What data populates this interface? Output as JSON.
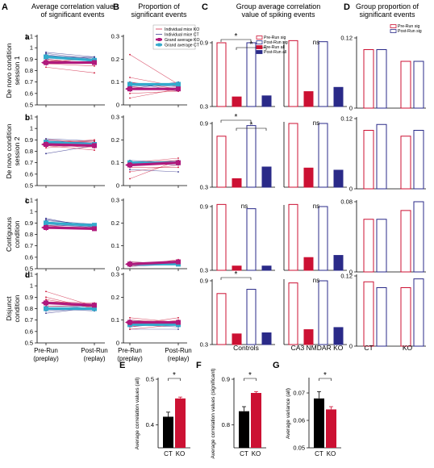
{
  "panel_letters": {
    "A": "A",
    "B": "B",
    "C": "C",
    "D": "D",
    "E": "E",
    "F": "F",
    "G": "G"
  },
  "headers": {
    "A": "Average correlation value of significant events",
    "B": "Proportion of significant events",
    "C": "Group average correlation value of spiking events",
    "D": "Group proportion of significant events"
  },
  "row_letters": [
    "a",
    "b",
    "c",
    "d"
  ],
  "row_labels": [
    [
      "De novo condition",
      "session 1"
    ],
    [
      "De novo condition",
      "session 2"
    ],
    [
      "Contiguous",
      "condition"
    ],
    [
      "Disjunct",
      "condition"
    ]
  ],
  "x_labels_AB": [
    [
      "Pre-Run",
      "(preplay)"
    ],
    [
      "Post-Run",
      "(replay)"
    ]
  ],
  "group_labels": {
    "controls": "Controls",
    "ko": "CA3 NMDAR KO",
    "ct": "CT",
    "ko_short": "KO"
  },
  "annotations": {
    "star": "*",
    "ns": "ns"
  },
  "legend_B": [
    "Individual mice KO",
    "Individual mice CT",
    "Grand average KO",
    "Grand average CT"
  ],
  "legend_C": [
    "Pre-Run sig",
    "Post-Run sig",
    "Pre-Run all",
    "Post-Run all"
  ],
  "legend_D": [
    "Pre-Run sig",
    "Post-Run sig"
  ],
  "bottom_ylabels": {
    "E": "Average correlation values (all)",
    "F": "Average correlation values (significant)",
    "G": "Average variance (all)"
  },
  "colors": {
    "ko": "#cc1133",
    "ct": "#2a2a88",
    "ko_grand": "#b0197c",
    "ct_grand": "#33aacc",
    "bar_black": "#000000"
  },
  "chart_data": [
    {
      "panel": "A",
      "type": "line",
      "yticks": [
        0.5,
        0.6,
        0.7,
        0.8,
        0.9,
        1.0,
        1.1
      ],
      "ylim": [
        0.5,
        1.1
      ],
      "x": [
        "Pre-Run (preplay)",
        "Post-Run (replay)"
      ],
      "rows": [
        {
          "grand_ko": [
            0.87,
            0.87
          ],
          "grand_ct": [
            0.92,
            0.89
          ],
          "ko": [
            [
              0.86,
              0.84
            ],
            [
              0.87,
              0.88
            ],
            [
              0.89,
              0.86
            ],
            [
              0.88,
              0.9
            ],
            [
              0.83,
              0.78
            ],
            [
              0.9,
              0.86
            ]
          ],
          "ct": [
            [
              0.95,
              0.9
            ],
            [
              0.93,
              0.91
            ],
            [
              0.94,
              0.88
            ],
            [
              0.91,
              0.92
            ],
            [
              0.9,
              0.86
            ],
            [
              0.92,
              0.88
            ],
            [
              0.96,
              0.92
            ]
          ]
        },
        {
          "grand_ko": [
            0.86,
            0.85
          ],
          "grand_ct": [
            0.88,
            0.86
          ],
          "ko": [
            [
              0.86,
              0.83
            ],
            [
              0.88,
              0.89
            ],
            [
              0.83,
              0.86
            ],
            [
              0.9,
              0.88
            ],
            [
              0.85,
              0.81
            ],
            [
              0.87,
              0.9
            ]
          ],
          "ct": [
            [
              0.89,
              0.87
            ],
            [
              0.78,
              0.85
            ],
            [
              0.91,
              0.89
            ],
            [
              0.86,
              0.84
            ],
            [
              0.88,
              0.88
            ],
            [
              0.9,
              0.86
            ]
          ]
        },
        {
          "grand_ko": [
            0.86,
            0.85
          ],
          "grand_ct": [
            0.9,
            0.88
          ],
          "ko": [
            [
              0.86,
              0.85
            ],
            [
              0.87,
              0.86
            ],
            [
              0.88,
              0.84
            ],
            [
              0.85,
              0.86
            ]
          ],
          "ct": [
            [
              0.93,
              0.87
            ],
            [
              0.89,
              0.86
            ],
            [
              0.92,
              0.89
            ],
            [
              0.88,
              0.87
            ],
            [
              0.91,
              0.88
            ],
            [
              0.9,
              0.89
            ],
            [
              0.94,
              0.86
            ]
          ]
        },
        {
          "grand_ko": [
            0.85,
            0.83
          ],
          "grand_ct": [
            0.8,
            0.8
          ],
          "ko": [
            [
              0.95,
              0.82
            ],
            [
              0.9,
              0.8
            ],
            [
              0.85,
              0.84
            ],
            [
              0.82,
              0.83
            ],
            [
              0.88,
              0.81
            ],
            [
              0.86,
              0.85
            ]
          ],
          "ct": [
            [
              0.78,
              0.8
            ],
            [
              0.8,
              0.78
            ],
            [
              0.82,
              0.82
            ],
            [
              0.76,
              0.81
            ],
            [
              0.8,
              0.79
            ],
            [
              0.79,
              0.83
            ]
          ]
        }
      ]
    },
    {
      "panel": "B",
      "type": "line",
      "yticks": [
        0,
        0.1,
        0.2,
        0.3
      ],
      "ylim": [
        0,
        0.3
      ],
      "x": [
        "Pre-Run (preplay)",
        "Post-Run (replay)"
      ],
      "rows": [
        {
          "grand_ko": [
            0.07,
            0.07
          ],
          "grand_ct": [
            0.09,
            0.09
          ],
          "ko": [
            [
              0.22,
              0.09
            ],
            [
              0.12,
              0.08
            ],
            [
              0.1,
              0.07
            ],
            [
              0.08,
              0.06
            ],
            [
              0.05,
              0.06
            ],
            [
              0.03,
              0.07
            ]
          ],
          "ct": [
            [
              0.09,
              0.08
            ],
            [
              0.08,
              0.09
            ],
            [
              0.1,
              0.06
            ],
            [
              0.07,
              0.1
            ],
            [
              0.09,
              0.09
            ]
          ]
        },
        {
          "grand_ko": [
            0.09,
            0.1
          ],
          "grand_ct": [
            0.1,
            0.1
          ],
          "ko": [
            [
              0.1,
              0.11
            ],
            [
              0.03,
              0.11
            ],
            [
              0.06,
              0.09
            ],
            [
              0.08,
              0.08
            ],
            [
              0.1,
              0.12
            ]
          ],
          "ct": [
            [
              0.1,
              0.1
            ],
            [
              0.09,
              0.11
            ],
            [
              0.07,
              0.06
            ],
            [
              0.11,
              0.1
            ],
            [
              0.1,
              0.09
            ]
          ]
        },
        {
          "grand_ko": [
            0.02,
            0.03
          ],
          "grand_ct": [
            0.02,
            0.02
          ],
          "ko": [
            [
              0.02,
              0.03
            ],
            [
              0.01,
              0.04
            ],
            [
              0.03,
              0.02
            ],
            [
              0.02,
              0.03
            ]
          ],
          "ct": [
            [
              0.02,
              0.02
            ],
            [
              0.03,
              0.02
            ],
            [
              0.01,
              0.02
            ],
            [
              0.02,
              0.03
            ]
          ]
        },
        {
          "grand_ko": [
            0.09,
            0.09
          ],
          "grand_ct": [
            0.08,
            0.08
          ],
          "ko": [
            [
              0.1,
              0.09
            ],
            [
              0.06,
              0.08
            ],
            [
              0.08,
              0.11
            ],
            [
              0.11,
              0.09
            ],
            [
              0.07,
              0.1
            ]
          ],
          "ct": [
            [
              0.09,
              0.08
            ],
            [
              0.07,
              0.09
            ],
            [
              0.08,
              0.07
            ],
            [
              0.1,
              0.08
            ],
            [
              0.06,
              0.06
            ]
          ]
        }
      ]
    },
    {
      "panel": "C",
      "type": "bar",
      "yticks": [
        0.3,
        0.9
      ],
      "ylim": [
        0.3,
        0.9
      ],
      "categories": [
        "Pre-Run sig",
        "Post-Run sig",
        "Pre-Run all",
        "Post-Run all"
      ],
      "rows": [
        {
          "controls": [
            0.9,
            0.9,
            0.39,
            0.4
          ],
          "ko": [
            0.92,
            0.91,
            0.44,
            0.48
          ],
          "controls_sig": [
            "*",
            "*"
          ],
          "ko_sig": "ns"
        },
        {
          "controls": [
            0.78,
            0.88,
            0.38,
            0.49
          ],
          "ko": [
            0.9,
            0.9,
            0.48,
            0.46
          ],
          "controls_sig": [
            "*",
            "*"
          ],
          "ko_sig": "ns"
        },
        {
          "controls": [
            0.92,
            0.88,
            0.34,
            0.34
          ],
          "ko": [
            0.92,
            0.9,
            0.42,
            0.44
          ],
          "controls_sig": "ns",
          "ko_sig": "ns"
        },
        {
          "controls": [
            0.78,
            0.82,
            0.4,
            0.41
          ],
          "ko": [
            0.88,
            0.9,
            0.44,
            0.46
          ],
          "controls_sig": "*",
          "ko_sig": "ns"
        }
      ]
    },
    {
      "panel": "D",
      "type": "bar",
      "categories": [
        "Pre-Run sig",
        "Post-Run sig"
      ],
      "rows": [
        {
          "ylim": [
            0,
            0.12
          ],
          "yticks": [
            0,
            0.12
          ],
          "ct": [
            0.1,
            0.1
          ],
          "ko": [
            0.08,
            0.08
          ]
        },
        {
          "ylim": [
            0,
            0.12
          ],
          "yticks": [
            0,
            0.12
          ],
          "ct": [
            0.1,
            0.11
          ],
          "ko": [
            0.09,
            0.1
          ]
        },
        {
          "ylim": [
            0,
            0.08
          ],
          "yticks": [
            0,
            0.08
          ],
          "ct": [
            0.06,
            0.06
          ],
          "ko": [
            0.07,
            0.08
          ]
        },
        {
          "ylim": [
            0,
            0.12
          ],
          "yticks": [
            0,
            0.12
          ],
          "ct": [
            0.11,
            0.1
          ],
          "ko": [
            0.1,
            0.115
          ]
        }
      ]
    },
    {
      "panel": "E",
      "type": "bar",
      "categories": [
        "CT",
        "KO"
      ],
      "values": [
        0.418,
        0.458
      ],
      "errors": [
        0.01,
        0.003
      ],
      "ylim": [
        0.35,
        0.5
      ],
      "yticks": [
        0.4,
        0.5
      ],
      "ylabel": "Average correlation values (all)",
      "sig": "*"
    },
    {
      "panel": "F",
      "type": "bar",
      "categories": [
        "CT",
        "KO"
      ],
      "values": [
        0.83,
        0.87
      ],
      "errors": [
        0.01,
        0.003
      ],
      "ylim": [
        0.75,
        0.9
      ],
      "yticks": [
        0.8,
        0.9
      ],
      "ylabel": "Average correlation values (significant)",
      "sig": "*"
    },
    {
      "panel": "G",
      "type": "bar",
      "categories": [
        "CT",
        "KO"
      ],
      "values": [
        0.068,
        0.064
      ],
      "errors": [
        0.0025,
        0.001
      ],
      "ylim": [
        0.05,
        0.075
      ],
      "yticks": [
        0.05,
        0.06,
        0.07
      ],
      "ylabel": "Average variance (all)",
      "sig": "*"
    }
  ]
}
